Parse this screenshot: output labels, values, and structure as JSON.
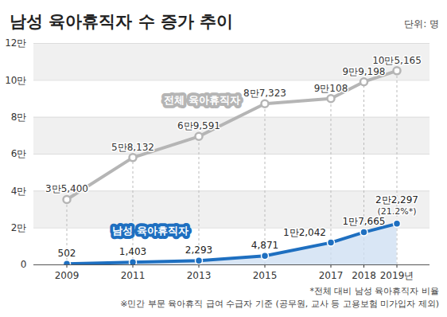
{
  "chart_data": {
    "type": "line",
    "title": "남성 육아휴직자 수 증가 추이",
    "subtitle": "단위: 명",
    "notes": [
      "*전체 대비 남성 육아휴직자 비율",
      "※민간 부문 육아휴직 급여 수급자 기준 (공무원, 교사 등 고용보험 미가입자 제외)"
    ],
    "x": [
      2009,
      2011,
      2013,
      2015,
      2017,
      2018,
      2019
    ],
    "series": [
      {
        "name": "전체 육아휴직자",
        "color": "#b5b5b5",
        "marker": "circle",
        "values": [
          35400,
          58132,
          69591,
          87323,
          90108,
          99198,
          105165
        ],
        "value_labels": [
          "3만5,400",
          "5만8,132",
          "6만9,591",
          "8만7,323",
          "9만108",
          "9만9,198",
          "10만5,165"
        ]
      },
      {
        "name": "남성 육아휴직자",
        "color": "#1e6fc0",
        "marker": "circle",
        "values": [
          502,
          1403,
          2293,
          4871,
          12042,
          17665,
          22297
        ],
        "value_labels": [
          "502",
          "1,403",
          "2,293",
          "4,871",
          "1만2,042",
          "1만7,665",
          "2만2,297"
        ]
      }
    ],
    "annotations": [
      {
        "text": "(21.2%*)",
        "x": 2019
      }
    ],
    "xlim": [
      2008,
      2020
    ],
    "xticks": [
      2009,
      2011,
      2013,
      2015,
      2017,
      2018,
      {
        "value": 2019,
        "label": "2019년"
      }
    ],
    "ylim": [
      0,
      120000
    ],
    "yticks": [
      0,
      {
        "value": 20000,
        "label": "2만"
      },
      {
        "value": 40000,
        "label": "4만"
      },
      {
        "value": 60000,
        "label": "6만"
      },
      {
        "value": 80000,
        "label": "8만"
      },
      {
        "value": 100000,
        "label": "10만"
      },
      {
        "value": 120000,
        "label": "12만"
      }
    ],
    "grid": true,
    "data_labels": true
  }
}
